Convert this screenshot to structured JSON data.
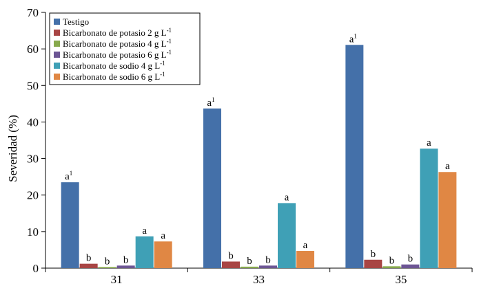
{
  "chart_data": {
    "type": "bar",
    "title": "",
    "xlabel": "",
    "ylabel": "Severidad (%)",
    "ylim": [
      0,
      70
    ],
    "yticks": [
      0,
      10,
      20,
      30,
      40,
      50,
      60,
      70
    ],
    "categories": [
      "31",
      "33",
      "35"
    ],
    "grid": false,
    "legend_position": "top-left",
    "series": [
      {
        "name": "Testigo",
        "color": "#4470a9",
        "values": [
          23.5,
          43.7,
          61.1
        ],
        "labels": [
          "a",
          "a",
          "a"
        ],
        "label_sups": [
          "1",
          "1",
          "1"
        ]
      },
      {
        "name": "Bicarbonato de potasio 2 g L",
        "name_sup": "-1",
        "color": "#a84544",
        "values": [
          1.2,
          1.8,
          2.3
        ],
        "labels": [
          "b",
          "b",
          "b"
        ]
      },
      {
        "name": "Bicarbonato de potasio 4 g L",
        "name_sup": "-1",
        "color": "#87a94c",
        "values": [
          0.3,
          0.4,
          0.5
        ],
        "labels": [
          "b",
          "b",
          "b"
        ]
      },
      {
        "name": "Bicarbonato de potasio 6 g L",
        "name_sup": "-1",
        "color": "#6c5594",
        "values": [
          0.7,
          0.7,
          1.0
        ],
        "labels": [
          "b",
          "b",
          "b"
        ]
      },
      {
        "name": "Bicarbonato de sodio  4 g L",
        "name_sup": "-1",
        "color": "#3fa0b6",
        "values": [
          8.7,
          17.8,
          32.7
        ],
        "labels": [
          "a",
          "a",
          "a"
        ]
      },
      {
        "name": "Bicarbonato de sodio 6 g L",
        "name_sup": "-1",
        "color": "#e08744",
        "values": [
          7.3,
          4.7,
          26.3
        ],
        "labels": [
          "a",
          "a",
          "a"
        ]
      }
    ]
  }
}
